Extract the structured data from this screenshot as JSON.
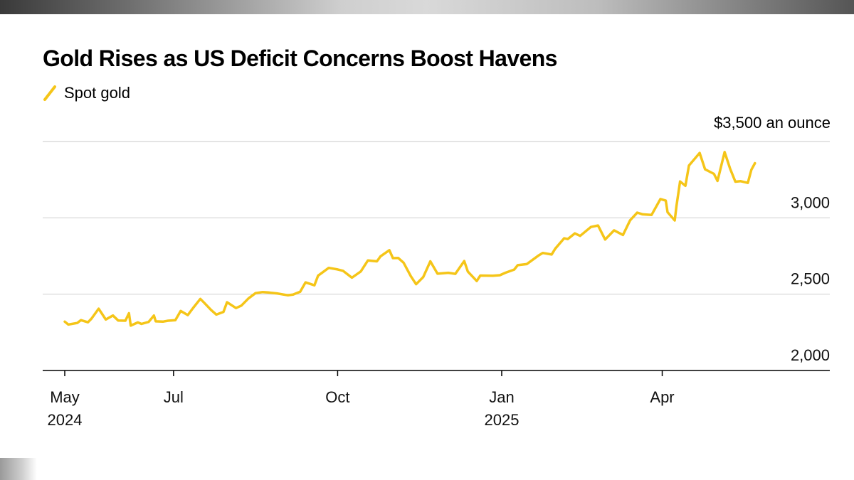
{
  "colors": {
    "line": "#F5C518",
    "gridline": "#d4d4d4",
    "axis": "#000000",
    "background": "#ffffff"
  },
  "chart_data": {
    "type": "line",
    "title": "Gold Rises as US Deficit Concerns Boost Havens",
    "legend": {
      "position": "top-left",
      "entries": [
        "Spot gold"
      ]
    },
    "grid": true,
    "xlim": [
      "2024-05-01",
      "2025-06-20"
    ],
    "ylim": [
      2000,
      3500
    ],
    "y_unit_label": "$3,500 an ounce",
    "y_ticks": [
      {
        "value": 3500,
        "label": "$3,500 an ounce"
      },
      {
        "value": 3000,
        "label": "3,000"
      },
      {
        "value": 2500,
        "label": "2,500"
      },
      {
        "value": 2000,
        "label": "2,000"
      }
    ],
    "x_ticks": [
      {
        "date": "2024-05-01",
        "label": "May",
        "year": "2024"
      },
      {
        "date": "2024-07-01",
        "label": "Jul",
        "year": ""
      },
      {
        "date": "2024-10-01",
        "label": "Oct",
        "year": ""
      },
      {
        "date": "2025-01-01",
        "label": "Jan",
        "year": "2025"
      },
      {
        "date": "2025-04-01",
        "label": "Apr",
        "year": ""
      }
    ],
    "series": [
      {
        "name": "Spot gold",
        "points": [
          [
            "2024-05-01",
            2320
          ],
          [
            "2024-05-03",
            2301
          ],
          [
            "2024-05-08",
            2311
          ],
          [
            "2024-05-10",
            2330
          ],
          [
            "2024-05-14",
            2316
          ],
          [
            "2024-05-16",
            2340
          ],
          [
            "2024-05-20",
            2405
          ],
          [
            "2024-05-22",
            2370
          ],
          [
            "2024-05-24",
            2334
          ],
          [
            "2024-05-28",
            2360
          ],
          [
            "2024-05-31",
            2327
          ],
          [
            "2024-06-04",
            2326
          ],
          [
            "2024-06-06",
            2375
          ],
          [
            "2024-06-07",
            2294
          ],
          [
            "2024-06-11",
            2315
          ],
          [
            "2024-06-13",
            2305
          ],
          [
            "2024-06-17",
            2318
          ],
          [
            "2024-06-20",
            2360
          ],
          [
            "2024-06-21",
            2322
          ],
          [
            "2024-06-25",
            2320
          ],
          [
            "2024-06-28",
            2326
          ],
          [
            "2024-07-02",
            2330
          ],
          [
            "2024-07-05",
            2390
          ],
          [
            "2024-07-09",
            2363
          ],
          [
            "2024-07-12",
            2410
          ],
          [
            "2024-07-16",
            2469
          ],
          [
            "2024-07-18",
            2446
          ],
          [
            "2024-07-22",
            2397
          ],
          [
            "2024-07-25",
            2366
          ],
          [
            "2024-07-29",
            2384
          ],
          [
            "2024-07-31",
            2447
          ],
          [
            "2024-08-05",
            2409
          ],
          [
            "2024-08-08",
            2425
          ],
          [
            "2024-08-12",
            2472
          ],
          [
            "2024-08-16",
            2507
          ],
          [
            "2024-08-20",
            2514
          ],
          [
            "2024-08-23",
            2511
          ],
          [
            "2024-08-28",
            2505
          ],
          [
            "2024-09-03",
            2493
          ],
          [
            "2024-09-06",
            2497
          ],
          [
            "2024-09-10",
            2516
          ],
          [
            "2024-09-13",
            2577
          ],
          [
            "2024-09-18",
            2558
          ],
          [
            "2024-09-20",
            2621
          ],
          [
            "2024-09-26",
            2672
          ],
          [
            "2024-10-01",
            2662
          ],
          [
            "2024-10-04",
            2653
          ],
          [
            "2024-10-09",
            2608
          ],
          [
            "2024-10-14",
            2649
          ],
          [
            "2024-10-18",
            2721
          ],
          [
            "2024-10-23",
            2715
          ],
          [
            "2024-10-25",
            2747
          ],
          [
            "2024-10-30",
            2788
          ],
          [
            "2024-11-01",
            2736
          ],
          [
            "2024-11-04",
            2737
          ],
          [
            "2024-11-07",
            2706
          ],
          [
            "2024-11-11",
            2618
          ],
          [
            "2024-11-14",
            2565
          ],
          [
            "2024-11-18",
            2612
          ],
          [
            "2024-11-22",
            2715
          ],
          [
            "2024-11-26",
            2634
          ],
          [
            "2024-12-02",
            2640
          ],
          [
            "2024-12-06",
            2633
          ],
          [
            "2024-12-11",
            2717
          ],
          [
            "2024-12-13",
            2648
          ],
          [
            "2024-12-18",
            2586
          ],
          [
            "2024-12-20",
            2622
          ],
          [
            "2024-12-27",
            2621
          ],
          [
            "2024-12-31",
            2624
          ],
          [
            "2025-01-03",
            2640
          ],
          [
            "2025-01-08",
            2661
          ],
          [
            "2025-01-10",
            2690
          ],
          [
            "2025-01-15",
            2697
          ],
          [
            "2025-01-22",
            2756
          ],
          [
            "2025-01-24",
            2770
          ],
          [
            "2025-01-29",
            2760
          ],
          [
            "2025-01-31",
            2798
          ],
          [
            "2025-02-05",
            2866
          ],
          [
            "2025-02-07",
            2861
          ],
          [
            "2025-02-11",
            2898
          ],
          [
            "2025-02-14",
            2882
          ],
          [
            "2025-02-20",
            2940
          ],
          [
            "2025-02-24",
            2950
          ],
          [
            "2025-02-28",
            2858
          ],
          [
            "2025-03-05",
            2918
          ],
          [
            "2025-03-10",
            2888
          ],
          [
            "2025-03-14",
            2984
          ],
          [
            "2025-03-18",
            3034
          ],
          [
            "2025-03-21",
            3023
          ],
          [
            "2025-03-26",
            3019
          ],
          [
            "2025-03-31",
            3123
          ],
          [
            "2025-04-03",
            3113
          ],
          [
            "2025-04-04",
            3037
          ],
          [
            "2025-04-08",
            2983
          ],
          [
            "2025-04-09",
            3080
          ],
          [
            "2025-04-11",
            3238
          ],
          [
            "2025-04-14",
            3210
          ],
          [
            "2025-04-16",
            3343
          ],
          [
            "2025-04-22",
            3425
          ],
          [
            "2025-04-25",
            3318
          ],
          [
            "2025-04-30",
            3288
          ],
          [
            "2025-05-02",
            3242
          ],
          [
            "2025-05-06",
            3431
          ],
          [
            "2025-05-09",
            3325
          ],
          [
            "2025-05-12",
            3237
          ],
          [
            "2025-05-15",
            3240
          ],
          [
            "2025-05-19",
            3229
          ],
          [
            "2025-05-21",
            3315
          ],
          [
            "2025-05-23",
            3358
          ]
        ]
      }
    ]
  }
}
